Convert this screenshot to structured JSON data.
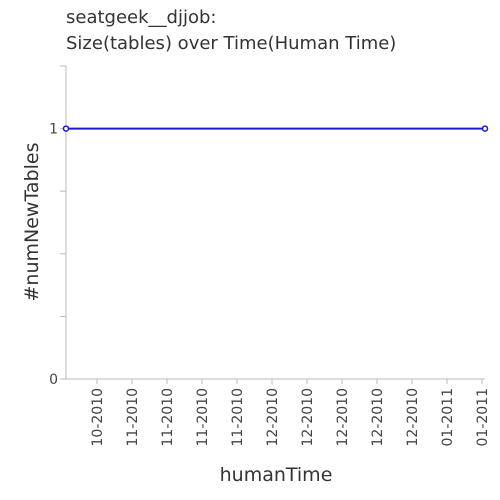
{
  "chart_data": {
    "type": "line",
    "title": "seatgeek__djjob:",
    "subtitle": "Size(tables) over Time(Human Time)",
    "xlabel": "humanTime",
    "ylabel": "#numNewTables",
    "x_tick_labels": [
      "10-2010",
      "11-2010",
      "11-2010",
      "11-2010",
      "11-2010",
      "12-2010",
      "12-2010",
      "12-2010",
      "12-2010",
      "12-2010",
      "01-2011",
      "01-2011"
    ],
    "y_tick_labels": [
      "0",
      "1"
    ],
    "yticks": [
      0,
      1
    ],
    "ylim": [
      0,
      1.25
    ],
    "series": [
      {
        "values": [
          1,
          1
        ],
        "x_start": "10-2010",
        "x_end": "01-2011"
      }
    ],
    "grid": false,
    "legend": "none",
    "colors": {
      "line": "#1a1ad0",
      "axis": "#bbbbbb",
      "text": "#444444"
    }
  }
}
